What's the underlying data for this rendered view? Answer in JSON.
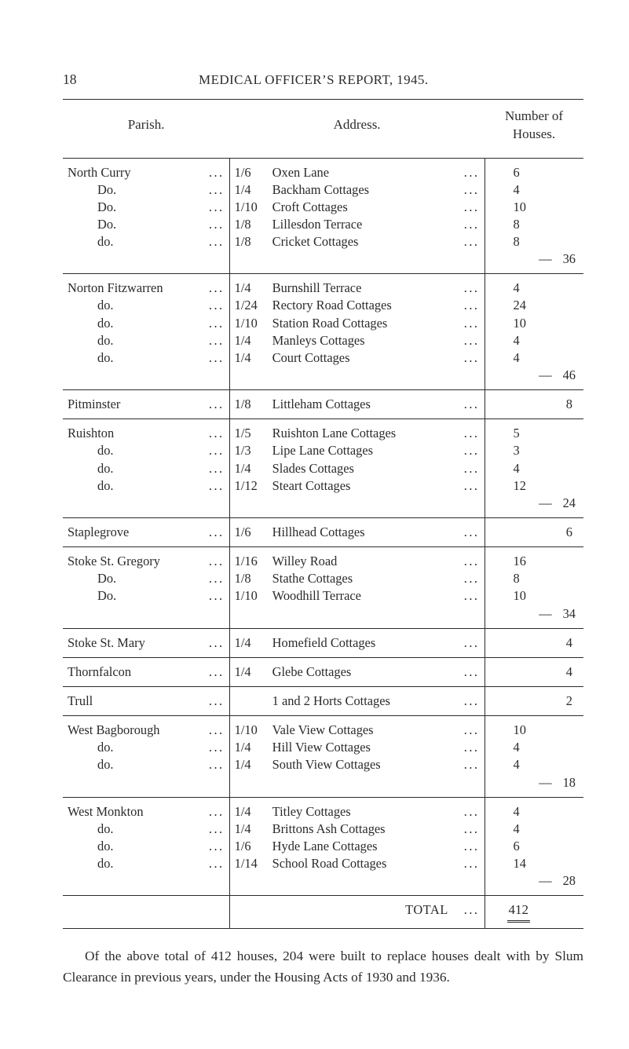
{
  "page_number": "18",
  "page_title": "MEDICAL OFFICER’S REPORT, 1945.",
  "columns": {
    "parish": "Parish.",
    "address": "Address.",
    "number": "Number of\nHouses."
  },
  "dots3": "...",
  "dash": "—",
  "groups": [
    {
      "parish_lines": [
        "North Curry",
        "Do.",
        "Do.",
        "Do.",
        "do."
      ],
      "rows": [
        {
          "frac": "1/6",
          "name": "Oxen Lane",
          "n": "6"
        },
        {
          "frac": "1/4",
          "name": "Backham Cottages",
          "n": "4"
        },
        {
          "frac": "1/10",
          "name": "Croft Cottages",
          "n": "10"
        },
        {
          "frac": "1/8",
          "name": "Lillesdon Terrace",
          "n": "8"
        },
        {
          "frac": "1/8",
          "name": "Cricket Cottages",
          "n": "8"
        }
      ],
      "subtotal": "36"
    },
    {
      "parish_lines": [
        "Norton Fitzwarren",
        "do.",
        "do.",
        "do.",
        "do."
      ],
      "rows": [
        {
          "frac": "1/4",
          "name": "Burnshill Terrace",
          "n": "4"
        },
        {
          "frac": "1/24",
          "name": "Rectory Road Cottages",
          "n": "24"
        },
        {
          "frac": "1/10",
          "name": "Station Road Cottages",
          "n": "10"
        },
        {
          "frac": "1/4",
          "name": "Manleys Cottages",
          "n": "4"
        },
        {
          "frac": "1/4",
          "name": "Court Cottages",
          "n": "4"
        }
      ],
      "subtotal": "46"
    },
    {
      "parish_lines": [
        "Pitminster"
      ],
      "rows": [
        {
          "frac": "1/8",
          "name": "Littleham Cottages",
          "n": ""
        }
      ],
      "subtotal_only": "8"
    },
    {
      "parish_lines": [
        "Ruishton",
        "do.",
        "do.",
        "do."
      ],
      "rows": [
        {
          "frac": "1/5",
          "name": "Ruishton Lane Cottages",
          "n": "5"
        },
        {
          "frac": "1/3",
          "name": "Lipe Lane Cottages",
          "n": "3"
        },
        {
          "frac": "1/4",
          "name": "Slades Cottages",
          "n": "4"
        },
        {
          "frac": "1/12",
          "name": "Steart Cottages",
          "n": "12"
        }
      ],
      "subtotal": "24"
    },
    {
      "parish_lines": [
        "Staplegrove"
      ],
      "rows": [
        {
          "frac": "1/6",
          "name": "Hillhead Cottages",
          "n": ""
        }
      ],
      "subtotal_only": "6"
    },
    {
      "parish_lines": [
        "Stoke St. Gregory",
        "Do.",
        "Do."
      ],
      "rows": [
        {
          "frac": "1/16",
          "name": "Willey Road",
          "n": "16"
        },
        {
          "frac": "1/8",
          "name": "Stathe Cottages",
          "n": "8"
        },
        {
          "frac": "1/10",
          "name": "Woodhill Terrace",
          "n": "10"
        }
      ],
      "subtotal": "34"
    },
    {
      "parish_lines": [
        "Stoke St. Mary"
      ],
      "rows": [
        {
          "frac": "1/4",
          "name": "Homefield Cottages",
          "n": ""
        }
      ],
      "subtotal_only": "4"
    },
    {
      "parish_lines": [
        "Thornfalcon"
      ],
      "rows": [
        {
          "frac": "1/4",
          "name": "Glebe Cottages",
          "n": ""
        }
      ],
      "subtotal_only": "4"
    },
    {
      "parish_lines": [
        "Trull"
      ],
      "rows": [
        {
          "frac": "",
          "name": "1 and 2 Horts Cottages",
          "n": ""
        }
      ],
      "subtotal_only": "2"
    },
    {
      "parish_lines": [
        "West Bagborough",
        "do.",
        "do."
      ],
      "rows": [
        {
          "frac": "1/10",
          "name": "Vale View Cottages",
          "n": "10"
        },
        {
          "frac": "1/4",
          "name": "Hill View Cottages",
          "n": "4"
        },
        {
          "frac": "1/4",
          "name": "South View Cottages",
          "n": "4"
        }
      ],
      "subtotal": "18"
    },
    {
      "parish_lines": [
        "West Monkton",
        "do.",
        "do.",
        "do."
      ],
      "rows": [
        {
          "frac": "1/4",
          "name": "Titley Cottages",
          "n": "4"
        },
        {
          "frac": "1/4",
          "name": "Brittons Ash Cottages",
          "n": "4"
        },
        {
          "frac": "1/6",
          "name": "Hyde Lane Cottages",
          "n": "6"
        },
        {
          "frac": "1/14",
          "name": "School Road Cottages",
          "n": "14"
        }
      ],
      "subtotal": "28"
    }
  ],
  "total_label": "TOTAL",
  "total_value": "412",
  "footer": "Of the above total of 412 houses, 204 were built to replace houses dealt with by Slum Clearance in previous years, under the Housing Acts of 1930 and 1936."
}
